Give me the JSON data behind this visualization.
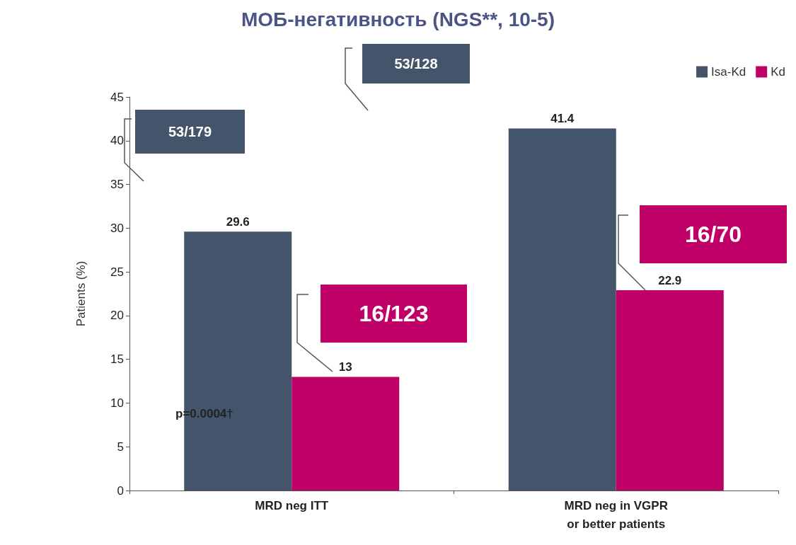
{
  "chart_data": {
    "type": "bar",
    "title": "МОБ-негативность (NGS**, 10-5)",
    "ylabel": "Patients (%)",
    "categories": [
      "MRD neg ITT",
      "MRD neg in VGPR\nor better patients"
    ],
    "series": [
      {
        "name": "Isa-Kd",
        "color": "#44546a",
        "values": [
          29.6,
          41.4
        ]
      },
      {
        "name": "Kd",
        "color": "#bf0067",
        "values": [
          13,
          22.9
        ]
      }
    ],
    "ylim": [
      0,
      45
    ],
    "yticks": [
      0,
      5,
      10,
      15,
      20,
      25,
      30,
      35,
      40,
      45
    ],
    "grid": false,
    "legend": "top right",
    "data_labels": true,
    "annotations": [
      "53/128",
      "53/179",
      "16/123",
      "16/70",
      "p=0.0004†"
    ]
  }
}
